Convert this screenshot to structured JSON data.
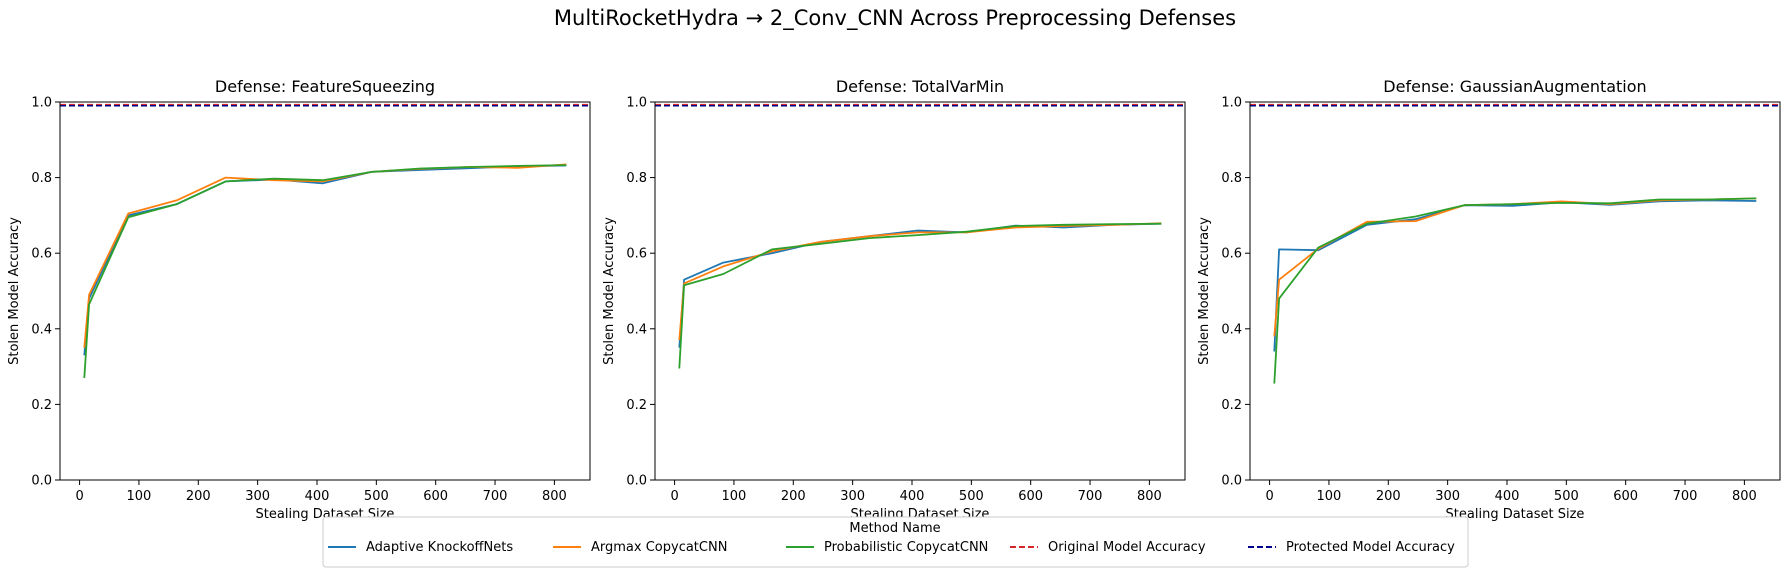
{
  "figure": {
    "title": "MultiRocketHydra → 2_Conv_CNN Across Preprocessing Defenses"
  },
  "legend": {
    "title": "Method Name",
    "placement": "bottom-center",
    "entries": [
      {
        "label": "Adaptive KnockoffNets",
        "color": "#1f77b4",
        "style": "solid"
      },
      {
        "label": "Argmax CopycatCNN",
        "color": "#ff7f0e",
        "style": "solid"
      },
      {
        "label": "Probabilistic CopycatCNN",
        "color": "#2ca02c",
        "style": "solid"
      },
      {
        "label": "Original Model Accuracy",
        "color": "#d62728",
        "style": "dashed"
      },
      {
        "label": "Protected Model Accuracy",
        "color": "#00008b",
        "style": "dashed"
      }
    ]
  },
  "chart_data": [
    {
      "type": "line",
      "title": "Defense: FeatureSqueezing",
      "xlabel": "Stealing Dataset Size",
      "ylabel": "Stolen Model Accuracy",
      "xlim": [
        -33,
        860
      ],
      "ylim": [
        0,
        1
      ],
      "xticks": [
        0,
        100,
        200,
        300,
        400,
        500,
        600,
        700,
        800
      ],
      "yticks": [
        "0.0",
        "0.2",
        "0.4",
        "0.6",
        "0.8",
        "1.0"
      ],
      "grid": false,
      "x": [
        8,
        16,
        82,
        164,
        246,
        328,
        410,
        492,
        574,
        656,
        738,
        820
      ],
      "series": [
        {
          "name": "Adaptive KnockoffNets",
          "color": "#1f77b4",
          "values": [
            0.33,
            0.48,
            0.7,
            0.73,
            0.79,
            0.795,
            0.785,
            0.815,
            0.82,
            0.825,
            0.83,
            0.832
          ]
        },
        {
          "name": "Argmax CopycatCNN",
          "color": "#ff7f0e",
          "values": [
            0.35,
            0.49,
            0.705,
            0.74,
            0.8,
            0.793,
            0.79,
            0.815,
            0.823,
            0.828,
            0.826,
            0.835
          ]
        },
        {
          "name": "Probabilistic CopycatCNN",
          "color": "#2ca02c",
          "values": [
            0.27,
            0.465,
            0.695,
            0.73,
            0.79,
            0.797,
            0.793,
            0.815,
            0.824,
            0.828,
            0.831,
            0.833
          ]
        }
      ],
      "hlines": [
        {
          "name": "Original Model Accuracy",
          "color": "#d62728",
          "value": 0.993
        },
        {
          "name": "Protected Model Accuracy",
          "color": "#00008b",
          "value": 0.99
        }
      ]
    },
    {
      "type": "line",
      "title": "Defense: TotalVarMin",
      "xlabel": "Stealing Dataset Size",
      "ylabel": "Stolen Model Accuracy",
      "xlim": [
        -33,
        860
      ],
      "ylim": [
        0,
        1
      ],
      "xticks": [
        0,
        100,
        200,
        300,
        400,
        500,
        600,
        700,
        800
      ],
      "yticks": [
        "0.0",
        "0.2",
        "0.4",
        "0.6",
        "0.8",
        "1.0"
      ],
      "grid": false,
      "x": [
        8,
        16,
        82,
        164,
        246,
        328,
        410,
        492,
        574,
        656,
        738,
        820
      ],
      "series": [
        {
          "name": "Adaptive KnockoffNets",
          "color": "#1f77b4",
          "values": [
            0.35,
            0.53,
            0.575,
            0.6,
            0.63,
            0.645,
            0.66,
            0.655,
            0.673,
            0.668,
            0.675,
            0.678
          ]
        },
        {
          "name": "Argmax CopycatCNN",
          "color": "#ff7f0e",
          "values": [
            0.37,
            0.52,
            0.565,
            0.605,
            0.63,
            0.645,
            0.655,
            0.655,
            0.668,
            0.672,
            0.675,
            0.679
          ]
        },
        {
          "name": "Probabilistic CopycatCNN",
          "color": "#2ca02c",
          "values": [
            0.295,
            0.515,
            0.545,
            0.61,
            0.625,
            0.64,
            0.648,
            0.657,
            0.672,
            0.675,
            0.677,
            0.678
          ]
        }
      ],
      "hlines": [
        {
          "name": "Original Model Accuracy",
          "color": "#d62728",
          "value": 0.993
        },
        {
          "name": "Protected Model Accuracy",
          "color": "#00008b",
          "value": 0.99
        }
      ]
    },
    {
      "type": "line",
      "title": "Defense: GaussianAugmentation",
      "xlabel": "Stealing Dataset Size",
      "ylabel": "Stolen Model Accuracy",
      "xlim": [
        -33,
        860
      ],
      "ylim": [
        0,
        1
      ],
      "xticks": [
        0,
        100,
        200,
        300,
        400,
        500,
        600,
        700,
        800
      ],
      "yticks": [
        "0.0",
        "0.2",
        "0.4",
        "0.6",
        "0.8",
        "1.0"
      ],
      "grid": false,
      "x": [
        8,
        16,
        82,
        164,
        246,
        328,
        410,
        492,
        574,
        656,
        738,
        820
      ],
      "series": [
        {
          "name": "Adaptive KnockoffNets",
          "color": "#1f77b4",
          "values": [
            0.34,
            0.61,
            0.608,
            0.675,
            0.69,
            0.727,
            0.725,
            0.735,
            0.728,
            0.737,
            0.74,
            0.738
          ]
        },
        {
          "name": "Argmax CopycatCNN",
          "color": "#ff7f0e",
          "values": [
            0.38,
            0.53,
            0.612,
            0.683,
            0.685,
            0.727,
            0.73,
            0.737,
            0.73,
            0.74,
            0.742,
            0.745
          ]
        },
        {
          "name": "Probabilistic CopycatCNN",
          "color": "#2ca02c",
          "values": [
            0.255,
            0.48,
            0.615,
            0.678,
            0.697,
            0.727,
            0.73,
            0.733,
            0.732,
            0.742,
            0.742,
            0.745
          ]
        }
      ],
      "hlines": [
        {
          "name": "Original Model Accuracy",
          "color": "#d62728",
          "value": 0.993
        },
        {
          "name": "Protected Model Accuracy",
          "color": "#00008b",
          "value": 0.99
        }
      ]
    }
  ]
}
